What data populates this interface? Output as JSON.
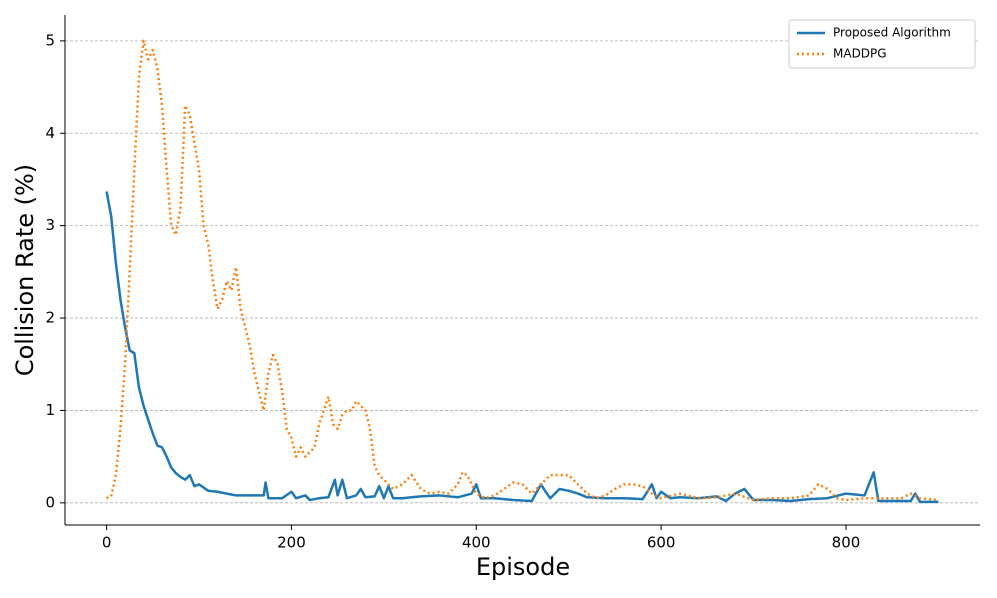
{
  "chart_data": {
    "type": "line",
    "xlabel": "Episode",
    "ylabel": "Collision Rate (%)",
    "xlim": [
      -45,
      945
    ],
    "ylim": [
      -0.24,
      5.28
    ],
    "xticks": [
      0,
      200,
      400,
      600,
      800
    ],
    "yticks": [
      0,
      1,
      2,
      3,
      4,
      5
    ],
    "grid": true,
    "legend": "upper right",
    "series": [
      {
        "name": "Proposed Algorithm",
        "color": "#1f77b4",
        "style": "solid",
        "x": [
          0,
          5,
          10,
          15,
          20,
          25,
          30,
          35,
          40,
          45,
          50,
          55,
          60,
          65,
          70,
          75,
          80,
          85,
          90,
          95,
          100,
          110,
          120,
          130,
          140,
          150,
          160,
          170,
          172,
          175,
          190,
          200,
          205,
          215,
          220,
          230,
          240,
          247,
          250,
          255,
          260,
          270,
          275,
          280,
          290,
          295,
          300,
          305,
          310,
          320,
          330,
          340,
          360,
          380,
          395,
          400,
          405,
          420,
          440,
          460,
          470,
          475,
          480,
          490,
          500,
          510,
          520,
          540,
          560,
          580,
          590,
          595,
          600,
          610,
          620,
          640,
          660,
          670,
          680,
          690,
          700,
          720,
          740,
          760,
          780,
          800,
          820,
          830,
          835,
          850,
          870,
          875,
          880,
          900
        ],
        "values": [
          3.37,
          3.1,
          2.6,
          2.2,
          1.9,
          1.65,
          1.62,
          1.25,
          1.05,
          0.9,
          0.75,
          0.62,
          0.6,
          0.5,
          0.38,
          0.32,
          0.28,
          0.25,
          0.3,
          0.18,
          0.2,
          0.13,
          0.12,
          0.1,
          0.08,
          0.08,
          0.08,
          0.08,
          0.22,
          0.05,
          0.05,
          0.12,
          0.05,
          0.08,
          0.03,
          0.05,
          0.06,
          0.25,
          0.08,
          0.25,
          0.05,
          0.08,
          0.15,
          0.06,
          0.07,
          0.18,
          0.05,
          0.18,
          0.05,
          0.05,
          0.06,
          0.07,
          0.08,
          0.06,
          0.1,
          0.2,
          0.05,
          0.05,
          0.03,
          0.02,
          0.2,
          0.12,
          0.05,
          0.15,
          0.13,
          0.1,
          0.06,
          0.05,
          0.05,
          0.04,
          0.2,
          0.05,
          0.12,
          0.05,
          0.06,
          0.05,
          0.07,
          0.02,
          0.1,
          0.15,
          0.03,
          0.03,
          0.02,
          0.04,
          0.05,
          0.1,
          0.08,
          0.33,
          0.02,
          0.02,
          0.02,
          0.1,
          0.01,
          0.01
        ]
      },
      {
        "name": "MADDPG",
        "color": "#ff7f0e",
        "style": "dotted",
        "x": [
          0,
          5,
          10,
          15,
          20,
          25,
          30,
          35,
          40,
          45,
          50,
          55,
          60,
          65,
          70,
          75,
          80,
          85,
          90,
          95,
          100,
          105,
          110,
          115,
          120,
          125,
          130,
          135,
          140,
          145,
          150,
          155,
          160,
          165,
          170,
          175,
          180,
          185,
          190,
          195,
          200,
          205,
          210,
          215,
          220,
          225,
          230,
          235,
          240,
          245,
          250,
          255,
          260,
          265,
          270,
          275,
          280,
          285,
          290,
          295,
          300,
          310,
          320,
          330,
          340,
          350,
          360,
          370,
          380,
          385,
          390,
          400,
          410,
          420,
          430,
          440,
          450,
          460,
          470,
          480,
          490,
          500,
          510,
          520,
          530,
          540,
          550,
          560,
          570,
          580,
          590,
          600,
          620,
          640,
          660,
          680,
          700,
          720,
          740,
          760,
          770,
          780,
          790,
          800,
          820,
          840,
          860,
          870,
          880,
          900
        ],
        "values": [
          0.05,
          0.07,
          0.3,
          0.8,
          1.5,
          2.5,
          3.6,
          4.6,
          5.0,
          4.8,
          4.9,
          4.7,
          4.3,
          3.6,
          3.0,
          2.9,
          3.2,
          4.3,
          4.2,
          3.9,
          3.6,
          3.0,
          2.8,
          2.4,
          2.1,
          2.2,
          2.4,
          2.3,
          2.55,
          2.1,
          1.9,
          1.7,
          1.4,
          1.2,
          1.0,
          1.4,
          1.6,
          1.5,
          1.2,
          0.8,
          0.7,
          0.5,
          0.6,
          0.5,
          0.55,
          0.6,
          0.85,
          1.0,
          1.15,
          0.85,
          0.8,
          0.95,
          1.0,
          1.0,
          1.1,
          1.05,
          1.0,
          0.8,
          0.4,
          0.3,
          0.25,
          0.15,
          0.2,
          0.3,
          0.15,
          0.1,
          0.12,
          0.1,
          0.2,
          0.33,
          0.3,
          0.1,
          0.05,
          0.08,
          0.15,
          0.22,
          0.2,
          0.1,
          0.2,
          0.3,
          0.3,
          0.3,
          0.2,
          0.1,
          0.05,
          0.08,
          0.15,
          0.2,
          0.2,
          0.18,
          0.1,
          0.05,
          0.1,
          0.05,
          0.06,
          0.1,
          0.03,
          0.05,
          0.05,
          0.08,
          0.2,
          0.15,
          0.05,
          0.03,
          0.05,
          0.05,
          0.05,
          0.1,
          0.05,
          0.03
        ]
      }
    ]
  }
}
